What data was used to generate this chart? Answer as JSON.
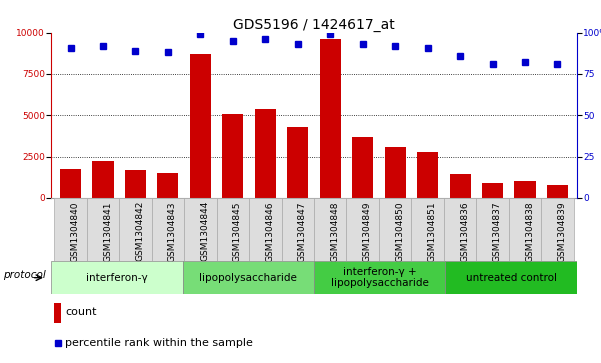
{
  "title": "GDS5196 / 1424617_at",
  "samples": [
    "GSM1304840",
    "GSM1304841",
    "GSM1304842",
    "GSM1304843",
    "GSM1304844",
    "GSM1304845",
    "GSM1304846",
    "GSM1304847",
    "GSM1304848",
    "GSM1304849",
    "GSM1304850",
    "GSM1304851",
    "GSM1304836",
    "GSM1304837",
    "GSM1304838",
    "GSM1304839"
  ],
  "counts": [
    1750,
    2200,
    1700,
    1500,
    8700,
    5050,
    5400,
    4300,
    9600,
    3700,
    3050,
    2750,
    1450,
    900,
    1000,
    800
  ],
  "percentiles": [
    91,
    92,
    89,
    88,
    99,
    95,
    96,
    93,
    99,
    93,
    92,
    91,
    86,
    81,
    82,
    81
  ],
  "bar_color": "#cc0000",
  "dot_color": "#0000cc",
  "ylim_left": [
    0,
    10000
  ],
  "ylim_right": [
    0,
    100
  ],
  "yticks_left": [
    0,
    2500,
    5000,
    7500,
    10000
  ],
  "yticks_right": [
    0,
    25,
    50,
    75,
    100
  ],
  "groups": [
    {
      "label": "interferon-γ",
      "start": 0,
      "end": 4,
      "color": "#ccffcc"
    },
    {
      "label": "lipopolysaccharide",
      "start": 4,
      "end": 8,
      "color": "#77dd77"
    },
    {
      "label": "interferon-γ +\nlipopolysaccharide",
      "start": 8,
      "end": 12,
      "color": "#44cc44"
    },
    {
      "label": "untreated control",
      "start": 12,
      "end": 16,
      "color": "#22bb22"
    }
  ],
  "protocol_label": "protocol",
  "legend_count_label": "count",
  "legend_percentile_label": "percentile rank within the sample",
  "grid_color": "#000000",
  "background_color": "#ffffff",
  "title_fontsize": 10,
  "tick_fontsize": 6.5,
  "group_fontsize": 7.5,
  "legend_fontsize": 8,
  "bar_width": 0.65,
  "sample_box_color": "#dddddd",
  "sample_box_edge": "#aaaaaa"
}
